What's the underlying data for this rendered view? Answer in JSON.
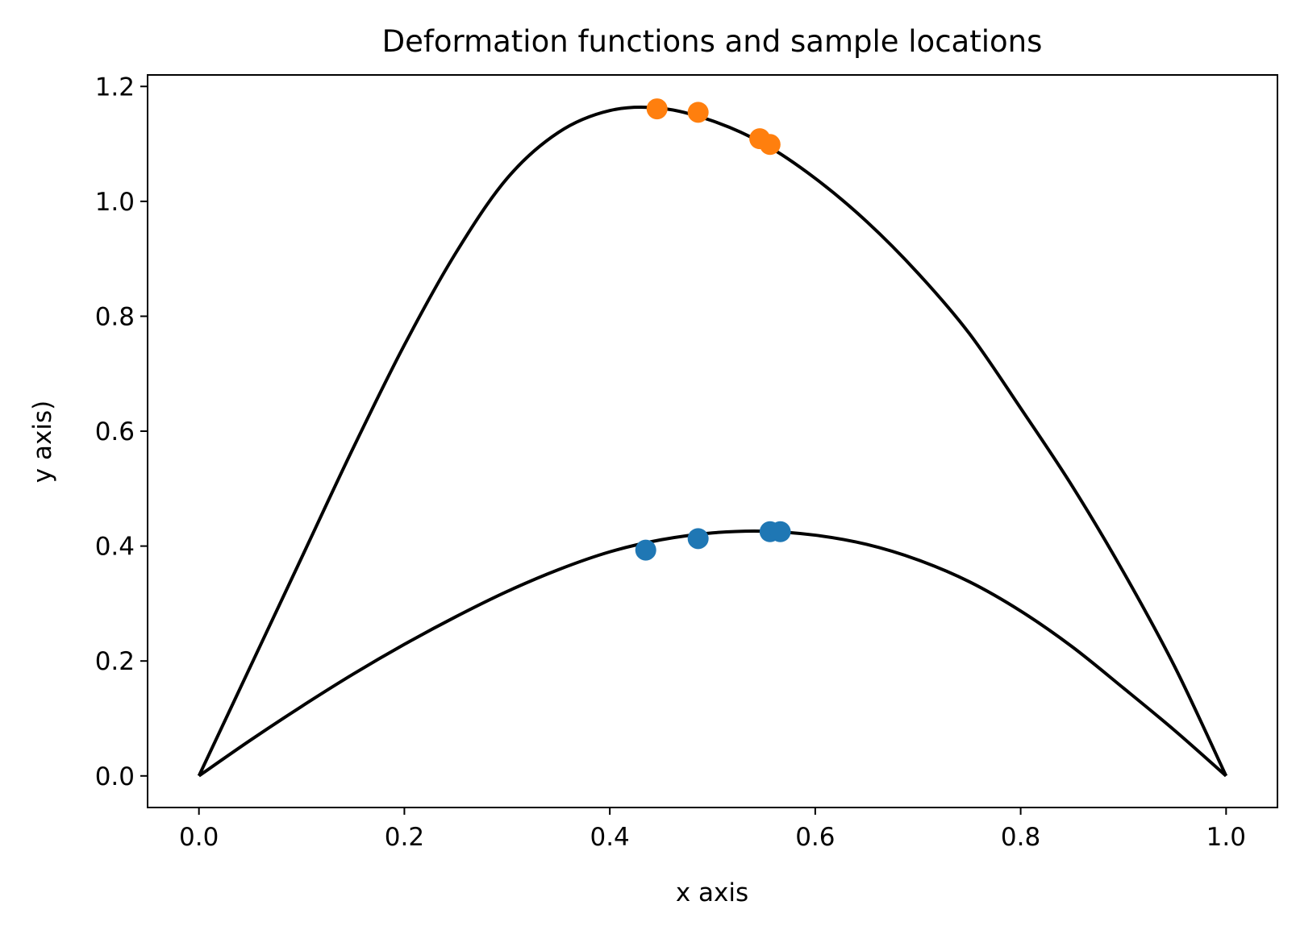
{
  "chart_data": {
    "type": "line",
    "title": "Deformation functions and sample locations",
    "xlabel": "x axis",
    "ylabel": "y axis)",
    "xlim": [
      -0.05,
      1.05
    ],
    "ylim": [
      -0.055,
      1.22
    ],
    "xticks": [
      "0.0",
      "0.2",
      "0.4",
      "0.6",
      "0.8",
      "1.0"
    ],
    "yticks": [
      "0.0",
      "0.2",
      "0.4",
      "0.6",
      "0.8",
      "1.0",
      "1.2"
    ],
    "grid": false,
    "legend": false,
    "curves": [
      {
        "color": "#000000",
        "x": [
          0.0,
          0.05,
          0.1,
          0.15,
          0.2,
          0.25,
          0.3,
          0.35,
          0.4,
          0.45,
          0.5,
          0.55,
          0.6,
          0.65,
          0.7,
          0.75,
          0.8,
          0.85,
          0.9,
          0.95,
          1.0
        ],
        "y": [
          0.0,
          0.062,
          0.121,
          0.177,
          0.229,
          0.277,
          0.321,
          0.359,
          0.39,
          0.411,
          0.423,
          0.426,
          0.419,
          0.403,
          0.376,
          0.338,
          0.287,
          0.225,
          0.153,
          0.079,
          0.0
        ]
      },
      {
        "color": "#000000",
        "x": [
          0.0,
          0.05,
          0.1,
          0.15,
          0.2,
          0.25,
          0.3,
          0.35,
          0.4,
          0.45,
          0.5,
          0.55,
          0.6,
          0.65,
          0.7,
          0.75,
          0.8,
          0.85,
          0.9,
          0.95,
          1.0
        ],
        "y": [
          0.0,
          0.19,
          0.38,
          0.57,
          0.75,
          0.91,
          1.04,
          1.12,
          1.158,
          1.162,
          1.14,
          1.1,
          1.04,
          0.965,
          0.875,
          0.77,
          0.64,
          0.505,
          0.355,
          0.19,
          0.0
        ]
      }
    ],
    "scatter": [
      {
        "color": "#1f77b4",
        "x": [
          0.435,
          0.486,
          0.556,
          0.566
        ],
        "y": [
          0.393,
          0.413,
          0.425,
          0.425
        ]
      },
      {
        "color": "#ff7f0e",
        "x": [
          0.446,
          0.486,
          0.546,
          0.556
        ],
        "y": [
          1.161,
          1.155,
          1.109,
          1.099
        ]
      }
    ]
  }
}
